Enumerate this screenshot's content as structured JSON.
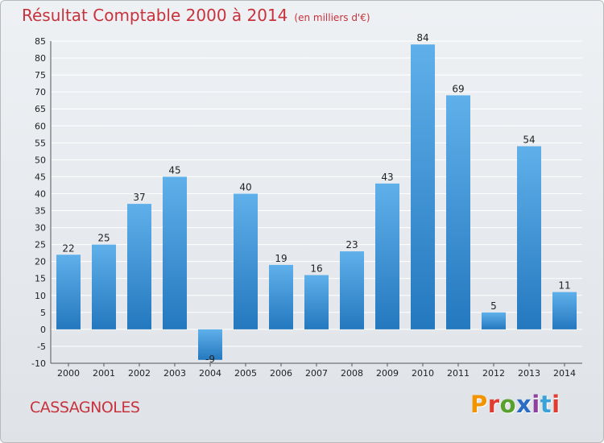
{
  "title": "Résultat Comptable 2000 à 2014",
  "subtitle": "(en milliers d'€)",
  "commune": "CASSAGNOLES",
  "logo": {
    "letters": [
      "P",
      "r",
      "o",
      "x",
      "i",
      "t",
      "i"
    ],
    "colors": [
      "#f29400",
      "#e23b2f",
      "#5aa02c",
      "#2b6cc4",
      "#8e3fa0",
      "#3aa2d8",
      "#e23b2f"
    ]
  },
  "colors": {
    "title": "#c8323c",
    "bar_top": "#5fb0ea",
    "bar_bottom": "#2478be",
    "grid": "#ffffff"
  },
  "chart_data": {
    "type": "bar",
    "title": "Résultat Comptable 2000 à 2014",
    "subtitle": "(en milliers d'€)",
    "categories": [
      "2000",
      "2001",
      "2002",
      "2003",
      "2004",
      "2005",
      "2006",
      "2007",
      "2008",
      "2009",
      "2010",
      "2011",
      "2012",
      "2013",
      "2014"
    ],
    "values": [
      22,
      25,
      37,
      45,
      -9,
      40,
      19,
      16,
      23,
      43,
      84,
      69,
      5,
      54,
      11
    ],
    "ylim": [
      -10,
      85
    ],
    "yticks": [
      -10,
      -5,
      0,
      5,
      10,
      15,
      20,
      25,
      30,
      35,
      40,
      45,
      50,
      55,
      60,
      65,
      70,
      75,
      80,
      85
    ],
    "grid": true,
    "xlabel": "",
    "ylabel": ""
  }
}
